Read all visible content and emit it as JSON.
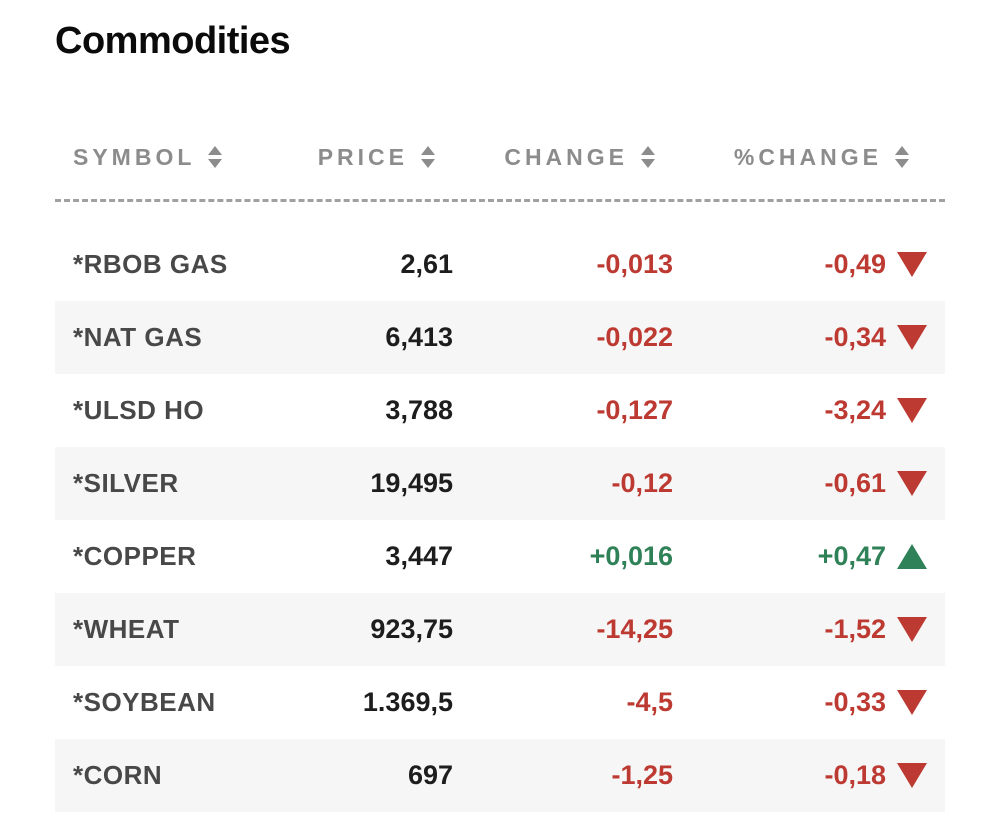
{
  "page": {
    "title": "Commodities"
  },
  "colors": {
    "negative": "#bd3a32",
    "positive": "#2f8157",
    "header_text": "#8c8c8c",
    "symbol_text": "#484848",
    "price_text": "#1d1d1d",
    "row_alt_bg": "#f6f6f6",
    "divider": "#a0a0a0"
  },
  "table": {
    "columns": [
      {
        "label": "SYMBOL"
      },
      {
        "label": "PRICE"
      },
      {
        "label": "CHANGE"
      },
      {
        "label": "%CHANGE"
      }
    ],
    "rows": [
      {
        "symbol": "*RBOB GAS",
        "price": "2,61",
        "change": "-0,013",
        "pct_change": "-0,49",
        "direction": "down"
      },
      {
        "symbol": "*NAT GAS",
        "price": "6,413",
        "change": "-0,022",
        "pct_change": "-0,34",
        "direction": "down"
      },
      {
        "symbol": "*ULSD HO",
        "price": "3,788",
        "change": "-0,127",
        "pct_change": "-3,24",
        "direction": "down"
      },
      {
        "symbol": "*SILVER",
        "price": "19,495",
        "change": "-0,12",
        "pct_change": "-0,61",
        "direction": "down"
      },
      {
        "symbol": "*COPPER",
        "price": "3,447",
        "change": "+0,016",
        "pct_change": "+0,47",
        "direction": "up"
      },
      {
        "symbol": "*WHEAT",
        "price": "923,75",
        "change": "-14,25",
        "pct_change": "-1,52",
        "direction": "down"
      },
      {
        "symbol": "*SOYBEAN",
        "price": "1.369,5",
        "change": "-4,5",
        "pct_change": "-0,33",
        "direction": "down"
      },
      {
        "symbol": "*CORN",
        "price": "697",
        "change": "-1,25",
        "pct_change": "-0,18",
        "direction": "down"
      }
    ]
  },
  "chart_data": {
    "type": "table",
    "title": "Commodities",
    "columns": [
      "SYMBOL",
      "PRICE",
      "CHANGE",
      "%CHANGE"
    ],
    "rows": [
      [
        "*RBOB GAS",
        "2,61",
        "-0,013",
        "-0,49"
      ],
      [
        "*NAT GAS",
        "6,413",
        "-0,022",
        "-0,34"
      ],
      [
        "*ULSD HO",
        "3,788",
        "-0,127",
        "-3,24"
      ],
      [
        "*SILVER",
        "19,495",
        "-0,12",
        "-0,61"
      ],
      [
        "*COPPER",
        "3,447",
        "+0,016",
        "+0,47"
      ],
      [
        "*WHEAT",
        "923,75",
        "-14,25",
        "-1,52"
      ],
      [
        "*SOYBEAN",
        "1.369,5",
        "-4,5",
        "-0,33"
      ],
      [
        "*CORN",
        "697",
        "-1,25",
        "-0,18"
      ]
    ],
    "layout_hints": {
      "alternating_row_background": true,
      "sortable_columns": true,
      "negative_color": "#bd3a32",
      "positive_color": "#2f8157",
      "trend_indicator": "triangle up/down in %CHANGE column"
    }
  }
}
